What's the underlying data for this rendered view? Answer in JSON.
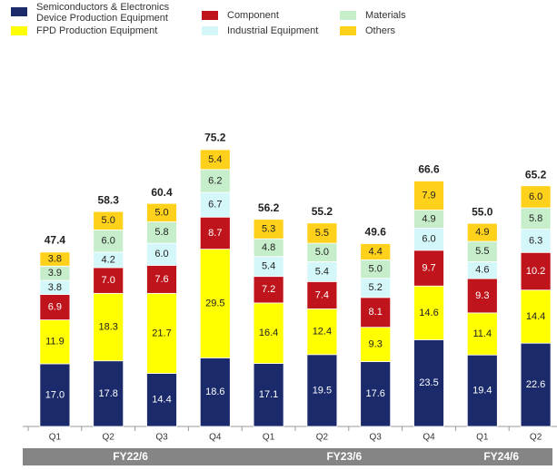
{
  "chart_data": {
    "type": "stacked_bar",
    "categories": [
      "Q1",
      "Q2",
      "Q3",
      "Q4",
      "Q1",
      "Q2",
      "Q3",
      "Q4",
      "Q1",
      "Q2"
    ],
    "groups": [
      "FY22/6",
      "FY22/6",
      "FY22/6",
      "FY22/6",
      "FY23/6",
      "FY23/6",
      "FY23/6",
      "FY23/6",
      "FY24/6",
      "FY24/6"
    ],
    "series": [
      {
        "name": "Semiconductors & Electronics\nDevice Production Equipment",
        "color": "#1b2a6b",
        "values": [
          17.0,
          17.8,
          14.4,
          18.6,
          17.1,
          19.5,
          17.6,
          23.5,
          19.4,
          22.6
        ],
        "value_labels": [
          "17.0",
          "17.8",
          "14.4",
          "18.6",
          "17.1",
          "19.5",
          "17.6",
          "23.5",
          "19.4",
          "22.6"
        ]
      },
      {
        "name": "FPD Production Equipment",
        "color": "#ffff00",
        "values": [
          11.9,
          18.3,
          21.7,
          29.5,
          16.4,
          12.4,
          9.3,
          14.6,
          11.4,
          14.4
        ],
        "value_labels": [
          "11.9",
          "18.3",
          "21.7",
          "29.5",
          "16.4",
          "12.4",
          "9.3",
          "14.6",
          "11.4",
          "14.4"
        ]
      },
      {
        "name": "Component",
        "color": "#c0141c",
        "values": [
          6.9,
          7.0,
          7.6,
          8.7,
          7.2,
          7.4,
          8.1,
          9.7,
          9.3,
          10.2
        ],
        "value_labels": [
          "6.9",
          "7.0",
          "7.6",
          "8.7",
          "7.2",
          "7.4",
          "8.1",
          "9.7",
          "9.3",
          "10.2"
        ]
      },
      {
        "name": "Industrial Equipment",
        "color": "#d4f7f9",
        "values": [
          3.8,
          4.2,
          6.0,
          6.7,
          5.4,
          5.4,
          5.2,
          6.0,
          4.6,
          6.3
        ],
        "value_labels": [
          "3.8",
          "4.2",
          "6.0",
          "6.7",
          "5.4",
          "5.4",
          "5.2",
          "6.0",
          "4.6",
          "6.3"
        ]
      },
      {
        "name": "Materials",
        "color": "#c6eecb",
        "values": [
          3.9,
          6.0,
          5.8,
          6.2,
          4.8,
          5.0,
          5.0,
          4.9,
          5.5,
          5.8
        ],
        "value_labels": [
          "3.9",
          "6.0",
          "5.8",
          "6.2",
          "4.8",
          "5.0",
          "5.0",
          "4.9",
          "5.5",
          "5.8"
        ]
      },
      {
        "name": "Others",
        "color": "#ffd11a",
        "values": [
          3.8,
          5.0,
          5.0,
          5.4,
          5.3,
          5.5,
          4.4,
          7.9,
          4.9,
          6.0
        ],
        "value_labels": [
          "3.8",
          "5.0",
          "5.0",
          "5.4",
          "5.3",
          "5.5",
          "4.4",
          "7.9",
          "4.9",
          "6.0"
        ]
      }
    ],
    "totals": [
      47.4,
      58.3,
      60.4,
      75.2,
      56.2,
      55.2,
      49.6,
      66.6,
      55.0,
      65.2
    ],
    "total_labels": [
      "47.4",
      "58.3",
      "60.4",
      "75.2",
      "56.2",
      "55.2",
      "49.6",
      "66.6",
      "55.0",
      "65.2"
    ],
    "ylim": [
      0,
      80
    ]
  }
}
